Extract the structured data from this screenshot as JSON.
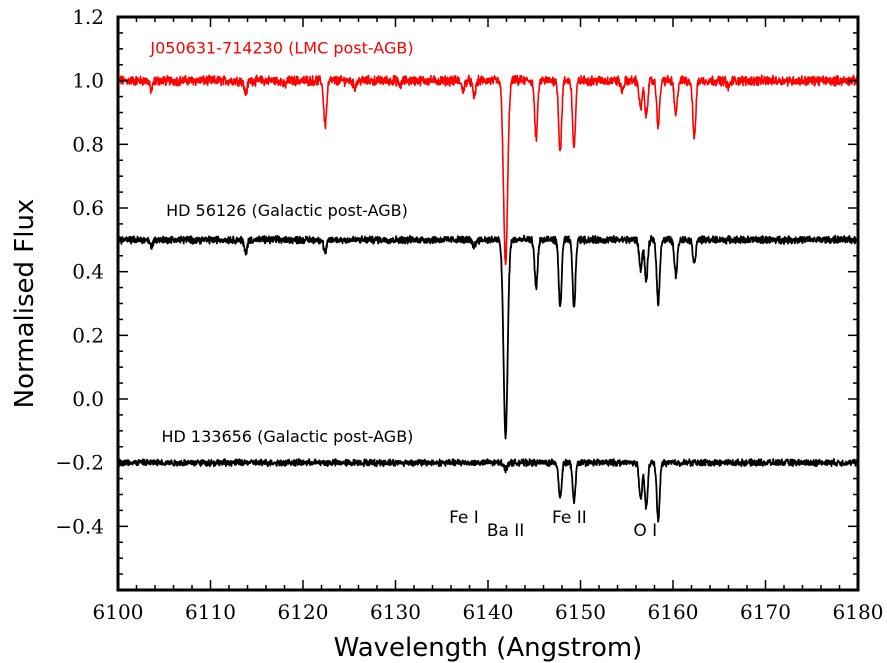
{
  "chart_data": {
    "type": "line",
    "xlabel": "Wavelength (Angstrom)",
    "ylabel": "Normalised Flux",
    "xlim": [
      6100,
      6180
    ],
    "ylim": [
      -0.6,
      1.2
    ],
    "xticks": [
      6100,
      6110,
      6120,
      6130,
      6140,
      6150,
      6160,
      6170,
      6180
    ],
    "xtick_labels": [
      "6100",
      "6110",
      "6120",
      "6130",
      "6140",
      "6150",
      "6160",
      "6170",
      "6180"
    ],
    "yticks": [
      1.2,
      1.0,
      0.8,
      0.6,
      0.4,
      0.2,
      0.0,
      -0.2,
      -0.4
    ],
    "ytick_labels": [
      "1.2",
      "1.0",
      "0.8",
      "0.6",
      "0.4",
      "0.2",
      "0.0",
      "−0.2",
      "−0.4"
    ],
    "grid": false,
    "series": [
      {
        "name": "J050631-714230 (LMC post-AGB)",
        "color": "#ff0000",
        "continuum": 1.0,
        "noise": 0.012,
        "lines": [
          [
            6103.6,
            0.03
          ],
          [
            6113.8,
            0.04
          ],
          [
            6118.0,
            0.015
          ],
          [
            6122.4,
            0.14
          ],
          [
            6125.6,
            0.02
          ],
          [
            6130.5,
            0.015
          ],
          [
            6137.3,
            0.03
          ],
          [
            6138.5,
            0.05
          ],
          [
            6141.9,
            0.58
          ],
          [
            6145.2,
            0.18
          ],
          [
            6147.8,
            0.22
          ],
          [
            6149.3,
            0.21
          ],
          [
            6154.5,
            0.03
          ],
          [
            6156.5,
            0.09
          ],
          [
            6157.1,
            0.11
          ],
          [
            6158.4,
            0.14
          ],
          [
            6160.3,
            0.11
          ],
          [
            6162.3,
            0.18
          ],
          [
            6166.0,
            0.02
          ]
        ],
        "label_values": [
          [
            6100.0,
            0.94
          ],
          [
            6105.0,
            0.99
          ],
          [
            6110.0,
            0.99
          ],
          [
            6113.8,
            0.96
          ],
          [
            6122.4,
            0.86
          ],
          [
            6130.0,
            0.99
          ],
          [
            6138.5,
            0.95
          ],
          [
            6141.9,
            0.42
          ],
          [
            6145.2,
            0.82
          ],
          [
            6147.8,
            0.78
          ],
          [
            6149.3,
            0.79
          ],
          [
            6156.5,
            0.91
          ],
          [
            6157.1,
            0.89
          ],
          [
            6158.4,
            0.86
          ],
          [
            6160.3,
            0.89
          ],
          [
            6162.3,
            0.82
          ],
          [
            6170.0,
            1.0
          ],
          [
            6180.0,
            0.99
          ]
        ]
      },
      {
        "name": "HD 56126 (Galactic post-AGB)",
        "color": "#000000",
        "continuum": 0.5,
        "noise": 0.009,
        "lines": [
          [
            6103.6,
            0.02
          ],
          [
            6113.8,
            0.04
          ],
          [
            6122.4,
            0.04
          ],
          [
            6138.5,
            0.02
          ],
          [
            6141.9,
            0.62
          ],
          [
            6145.2,
            0.15
          ],
          [
            6147.8,
            0.21
          ],
          [
            6149.3,
            0.21
          ],
          [
            6156.5,
            0.09
          ],
          [
            6157.1,
            0.13
          ],
          [
            6158.4,
            0.2
          ],
          [
            6160.3,
            0.11
          ],
          [
            6162.3,
            0.07
          ]
        ],
        "label_values": [
          [
            6100.0,
            0.44
          ],
          [
            6110.0,
            0.5
          ],
          [
            6141.9,
            -0.12
          ],
          [
            6145.2,
            0.35
          ],
          [
            6147.8,
            0.29
          ],
          [
            6149.3,
            0.29
          ],
          [
            6157.1,
            0.37
          ],
          [
            6158.4,
            0.3
          ],
          [
            6160.3,
            0.39
          ],
          [
            6180.0,
            0.49
          ]
        ]
      },
      {
        "name": "HD 133656 (Galactic post-AGB)",
        "color": "#000000",
        "continuum": -0.2,
        "noise": 0.008,
        "lines": [
          [
            6141.9,
            0.02
          ],
          [
            6147.8,
            0.11
          ],
          [
            6149.3,
            0.12
          ],
          [
            6156.5,
            0.12
          ],
          [
            6157.1,
            0.14
          ],
          [
            6158.4,
            0.18
          ]
        ],
        "label_values": [
          [
            6100.0,
            -0.21
          ],
          [
            6147.8,
            -0.31
          ],
          [
            6149.3,
            -0.32
          ],
          [
            6156.5,
            -0.32
          ],
          [
            6157.1,
            -0.34
          ],
          [
            6158.4,
            -0.38
          ],
          [
            6180.0,
            -0.2
          ]
        ]
      }
    ],
    "annotations": [
      {
        "text": "J050631-714230 (LMC post-AGB)",
        "x": 6103.5,
        "y": 1.085,
        "color": "#ff0000"
      },
      {
        "text": "HD 56126 (Galactic post-AGB)",
        "x": 6105.2,
        "y": 0.575,
        "color": "#000000"
      },
      {
        "text": "HD 133656 (Galactic post-AGB)",
        "x": 6104.7,
        "y": -0.135,
        "color": "#000000"
      }
    ],
    "line_ids": [
      {
        "text": "Fe I",
        "x": 6137.4,
        "y": -0.39
      },
      {
        "text": "Ba II",
        "x": 6141.9,
        "y": -0.43
      },
      {
        "text": "Fe II",
        "x": 6148.8,
        "y": -0.39
      },
      {
        "text": "O I",
        "x": 6157.0,
        "y": -0.43
      }
    ]
  }
}
